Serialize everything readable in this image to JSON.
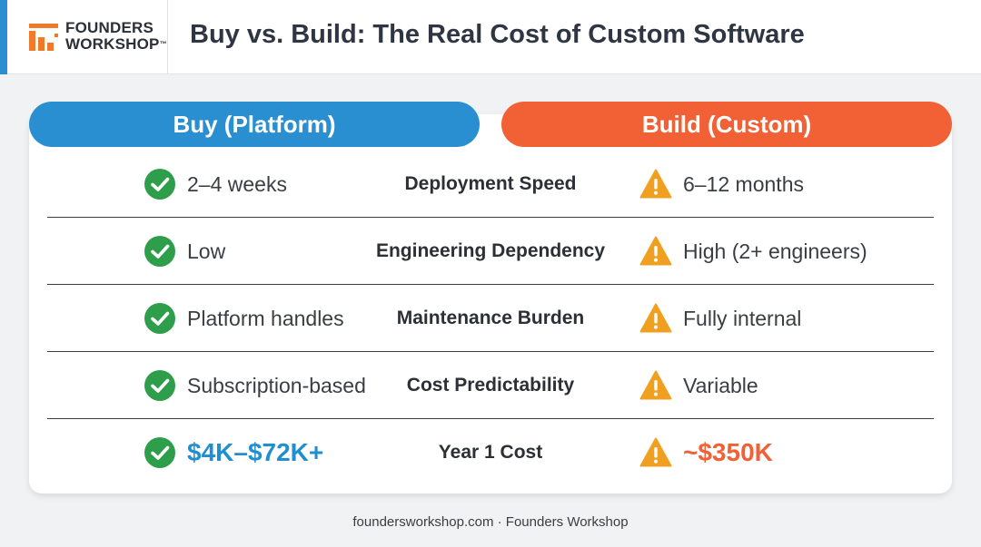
{
  "header": {
    "logo_line1": "FOUNDERS",
    "logo_line2": "WORKSHOP",
    "logo_tm": "™",
    "title": "Buy vs. Build: The Real Cost of Custom Software"
  },
  "columns": {
    "buy": "Buy (Platform)",
    "build": "Build (Custom)"
  },
  "rows": [
    {
      "metric": "Deployment Speed",
      "buy": "2–4 weeks",
      "build": "6–12 months"
    },
    {
      "metric": "Engineering Dependency",
      "buy": "Low",
      "build": "High (2+ engineers)"
    },
    {
      "metric": "Maintenance Burden",
      "buy": "Platform handles",
      "build": "Fully internal"
    },
    {
      "metric": "Cost Predictability",
      "buy": "Subscription-based",
      "build": "Variable"
    },
    {
      "metric": "Year 1 Cost",
      "buy": "$4K–$72K+",
      "build": "~$350K"
    }
  ],
  "footer": "foundersworkshop.com · Founders Workshop",
  "colors": {
    "buy_accent": "#2a8fd0",
    "build_accent": "#f26135",
    "check_icon": "#2e9e4b",
    "warning_icon": "#f0a020"
  },
  "icons": {
    "buy": "check-circle-icon",
    "build": "warning-triangle-icon"
  }
}
